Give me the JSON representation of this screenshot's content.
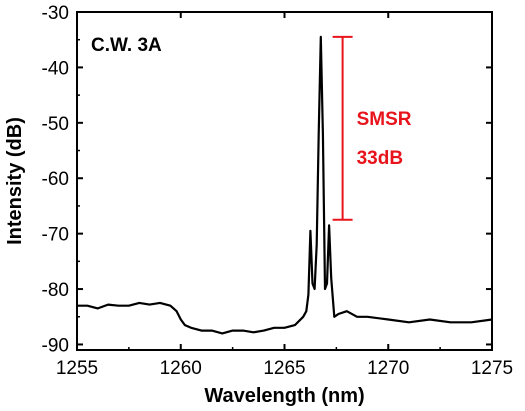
{
  "chart_data": {
    "type": "line",
    "title": "",
    "xlabel": "Wavelength (nm)",
    "ylabel": "Intensity (dB)",
    "xlim": [
      1255,
      1275
    ],
    "ylim": [
      -91,
      -30
    ],
    "xticks": [
      1255,
      1260,
      1265,
      1270,
      1275
    ],
    "yticks": [
      -30,
      -40,
      -50,
      -60,
      -70,
      -80,
      -90
    ],
    "grid": false,
    "annotations": {
      "condition": "C.W. 3A",
      "smsr_line1": "SMSR",
      "smsr_line2": "33dB",
      "smsr_top": -34.5,
      "smsr_bottom": -67.5,
      "smsr_wavelength": 1267.8,
      "smsr_color": "#e8141c"
    },
    "series": [
      {
        "color": "#000000",
        "x": [
          1255.0,
          1255.5,
          1256.0,
          1256.5,
          1257.0,
          1257.5,
          1258.0,
          1258.5,
          1259.0,
          1259.5,
          1259.8,
          1260.0,
          1260.2,
          1260.5,
          1261.0,
          1261.5,
          1262.0,
          1262.5,
          1263.0,
          1263.5,
          1264.0,
          1264.5,
          1265.0,
          1265.5,
          1265.9,
          1266.05,
          1266.15,
          1266.25,
          1266.35,
          1266.45,
          1266.55,
          1266.65,
          1266.75,
          1266.85,
          1266.95,
          1267.05,
          1267.15,
          1267.25,
          1267.4,
          1267.6,
          1268.0,
          1268.5,
          1269.0,
          1270.0,
          1271.0,
          1272.0,
          1273.0,
          1274.0,
          1275.0
        ],
        "y": [
          -83,
          -83,
          -83.5,
          -82.8,
          -83,
          -83,
          -82.5,
          -82.8,
          -82.5,
          -83,
          -84,
          -85.5,
          -86.5,
          -87,
          -87.5,
          -87.5,
          -88,
          -87.5,
          -87.5,
          -87.8,
          -87.5,
          -87,
          -87,
          -86.5,
          -85,
          -84,
          -81,
          -69.5,
          -79,
          -80,
          -72,
          -52,
          -34.5,
          -52,
          -80,
          -79,
          -68.5,
          -78,
          -85,
          -84.5,
          -84,
          -85,
          -85,
          -85.5,
          -86,
          -85.5,
          -86,
          -86,
          -85.5
        ]
      }
    ]
  }
}
